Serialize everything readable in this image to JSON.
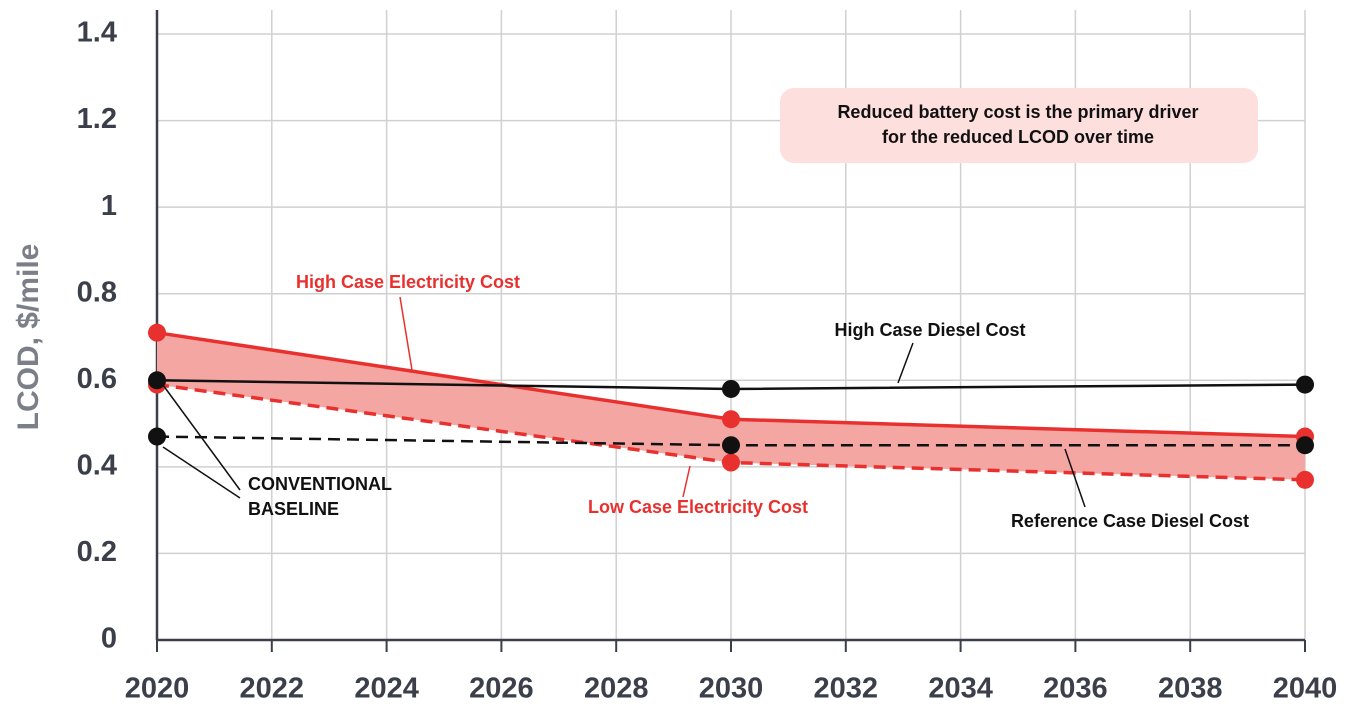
{
  "chart_data": {
    "type": "line",
    "y_label": "LCOD, $/mile",
    "x": [
      2020,
      2030,
      2040
    ],
    "xlim": [
      2020,
      2040
    ],
    "xticks": [
      2020,
      2022,
      2024,
      2026,
      2028,
      2030,
      2032,
      2034,
      2036,
      2038,
      2040
    ],
    "ylim": [
      0,
      1.4
    ],
    "yticks": [
      0,
      0.2,
      0.4,
      0.6,
      0.8,
      1,
      1.2,
      1.4
    ],
    "grid": true,
    "band_color": "#f4a6a3",
    "series": [
      {
        "name": "High Case Electricity Cost",
        "color": "#e8312f",
        "dashed": false,
        "values": [
          0.71,
          0.51,
          0.47
        ]
      },
      {
        "name": "Low Case Electricity Cost",
        "color": "#e8312f",
        "dashed": true,
        "values": [
          0.59,
          0.41,
          0.37
        ]
      },
      {
        "name": "High Case Diesel Cost",
        "color": "#111111",
        "dashed": false,
        "values": [
          0.6,
          0.58,
          0.59
        ]
      },
      {
        "name": "Reference Case Diesel Cost",
        "color": "#111111",
        "dashed": true,
        "values": [
          0.47,
          0.45,
          0.45
        ]
      }
    ],
    "annotations": [
      {
        "lines": [
          "CONVENTIONAL",
          "BASELINE"
        ]
      },
      {
        "lines": [
          "Reduced battery cost is the primary driver",
          "for the reduced LCOD over time"
        ]
      }
    ]
  }
}
